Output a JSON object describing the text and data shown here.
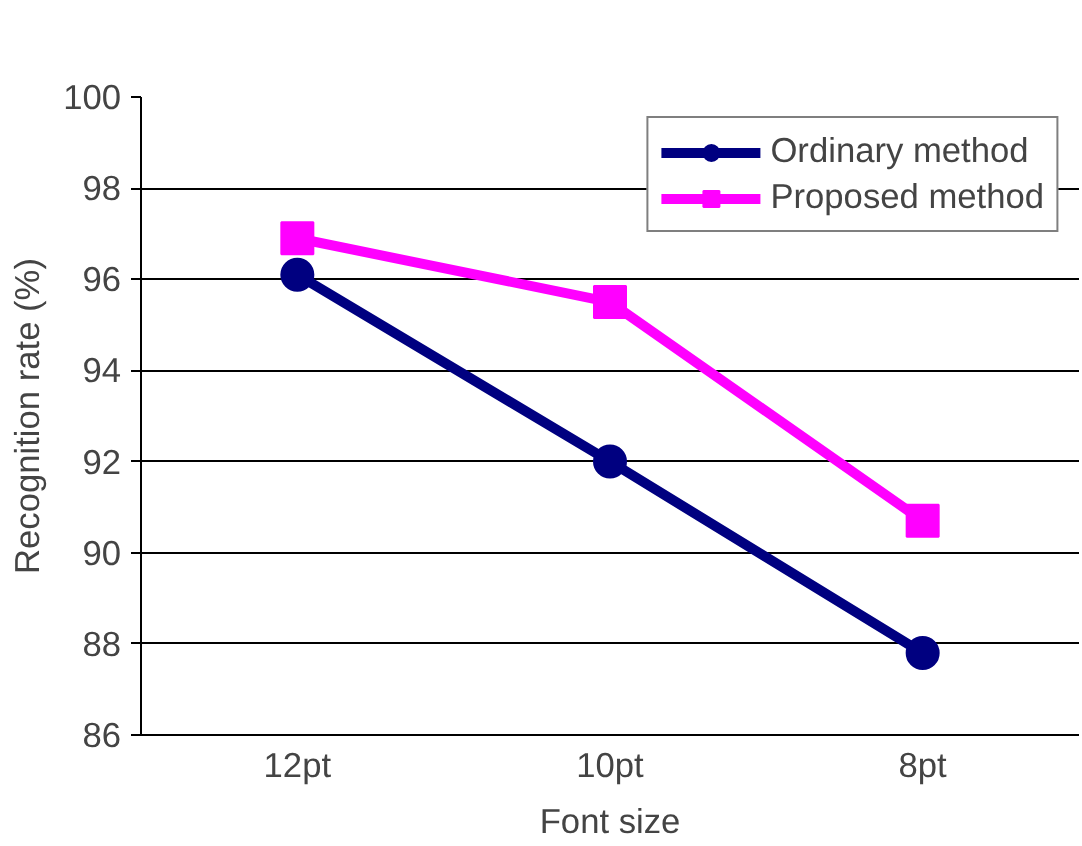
{
  "chart_data": {
    "type": "line",
    "xlabel": "Font size",
    "ylabel": "Recognition rate (%)",
    "categories": [
      "12pt",
      "10pt",
      "8pt"
    ],
    "series": [
      {
        "name": "Ordinary method",
        "color": "#000080",
        "marker": "circle",
        "values": [
          96.1,
          92.0,
          87.8
        ]
      },
      {
        "name": "Proposed method",
        "color": "#ff00ff",
        "marker": "square",
        "values": [
          96.9,
          95.5,
          90.7
        ]
      }
    ],
    "ylim": [
      86,
      100
    ],
    "yticks": [
      86,
      88,
      90,
      92,
      94,
      96,
      98,
      100
    ],
    "grid": "y",
    "legend": "top right",
    "line_style": "solid"
  }
}
